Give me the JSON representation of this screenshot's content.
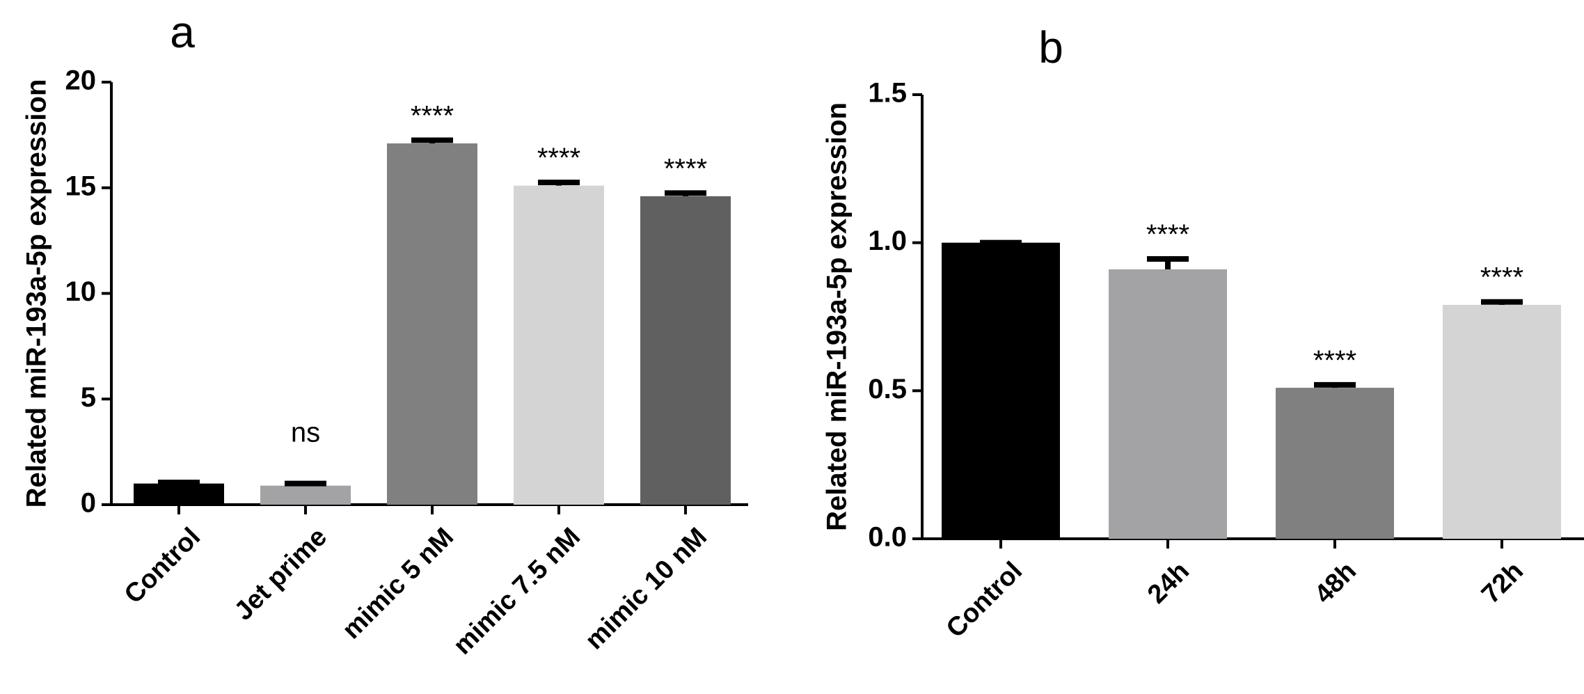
{
  "figure": {
    "panels": [
      "a",
      "b"
    ]
  },
  "chart_data": [
    {
      "panel": "a",
      "type": "bar",
      "title": "",
      "xlabel": "",
      "ylabel": "Related miR-193a-5p expression",
      "ylim": [
        0,
        20
      ],
      "yticks": [
        "0",
        "5",
        "10",
        "15",
        "20"
      ],
      "ytick_values": [
        0,
        5,
        10,
        15,
        20
      ],
      "categories": [
        "Control",
        "Jet prime",
        "mimic 5 nM",
        "mimic 7.5 nM",
        "mimic 10 nM"
      ],
      "values": [
        1.0,
        0.9,
        17.1,
        15.1,
        14.6
      ],
      "errors": [
        0.05,
        0.1,
        0.15,
        0.15,
        0.15
      ],
      "colors": [
        "#000000",
        "#a3a3a6",
        "#808080",
        "#d4d4d4",
        "#606060"
      ],
      "annotations": [
        "",
        "ns",
        "****",
        "****",
        "****"
      ]
    },
    {
      "panel": "b",
      "type": "bar",
      "title": "",
      "xlabel": "",
      "ylabel": "Related miR-193a-5p expression",
      "ylim": [
        0,
        1.5
      ],
      "yticks": [
        "0.0",
        "0.5",
        "1.0",
        "1.5"
      ],
      "ytick_values": [
        0,
        0.5,
        1.0,
        1.5
      ],
      "categories": [
        "Control",
        "24h",
        "48h",
        "72h"
      ],
      "values": [
        1.0,
        0.91,
        0.51,
        0.79
      ],
      "errors": [
        0.0,
        0.035,
        0.01,
        0.01
      ],
      "colors": [
        "#000000",
        "#a3a3a6",
        "#808080",
        "#d4d4d4"
      ],
      "annotations": [
        "",
        "****",
        "****",
        "****"
      ]
    }
  ]
}
